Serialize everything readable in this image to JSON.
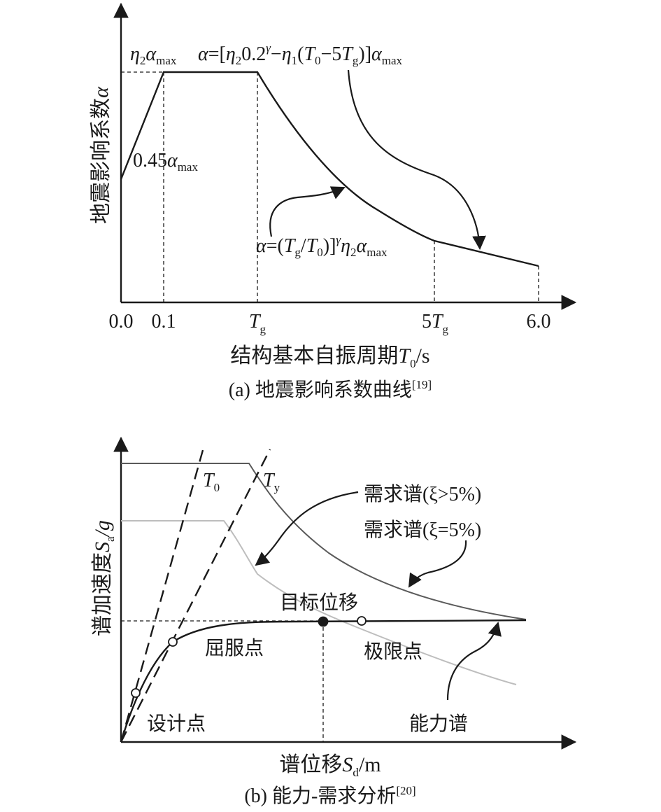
{
  "panel_a": {
    "ylabel": "地震影响系数",
    "ylabel_symbol": "α",
    "xlabel": "结构基本自振周期",
    "xlabel_symbol": "T",
    "xlabel_sub": "0",
    "xlabel_unit": "/s",
    "caption": "(a) 地震影响系数曲线",
    "caption_ref": "[19]",
    "tick_0": "0.0",
    "tick_01": "0.1",
    "tick_Tg": "T",
    "tick_Tg_sub": "g",
    "tick_5Tg": "5T",
    "tick_5Tg_sub": "g",
    "tick_6": "6.0",
    "label_plateau": "η",
    "label_plateau_sub": "2",
    "label_plateau_rest": "α",
    "label_plateau_sub2": "max",
    "label_start": "0.45α",
    "label_start_sub": "max",
    "formula_linear": "α=[η",
    "formula_linear_p2": "0.2",
    "formula_linear_p3": "−η",
    "formula_linear_p4": "(T",
    "formula_linear_p5": "−5T",
    "formula_linear_p6": ")]α",
    "formula_curve": "α=(T",
    "formula_curve_p2": "/T",
    "formula_curve_p3": ")]",
    "formula_curve_p4": "η",
    "formula_curve_p5": "α",
    "sup_gamma": "γ",
    "sub_1": "1",
    "sub_2": "2",
    "sub_0": "0",
    "sub_g": "g",
    "sub_max": "max"
  },
  "panel_b": {
    "ylabel": "谱加速度",
    "ylabel_symbol": "S",
    "ylabel_sub": "a",
    "ylabel_unit": "/g",
    "xlabel": "谱位移",
    "xlabel_symbol": "S",
    "xlabel_sub": "d",
    "xlabel_unit": "/m",
    "caption": "(b) 能力-需求分析",
    "caption_ref": "[20]",
    "label_T0": "T",
    "label_T0_sub": "0",
    "label_Ty": "T",
    "label_Ty_sub": "y",
    "label_demand_gt": "需求谱(ξ>5%)",
    "label_demand_eq": "需求谱(ξ=5%)",
    "label_target": "目标位移",
    "label_yield": "屈服点",
    "label_ultimate": "极限点",
    "label_design": "设计点",
    "label_capacity": "能力谱"
  },
  "colors": {
    "ink": "#1a1a1a",
    "demand_high_damping": "#5a5a5a",
    "demand_5pct": "#bdbdbd"
  }
}
